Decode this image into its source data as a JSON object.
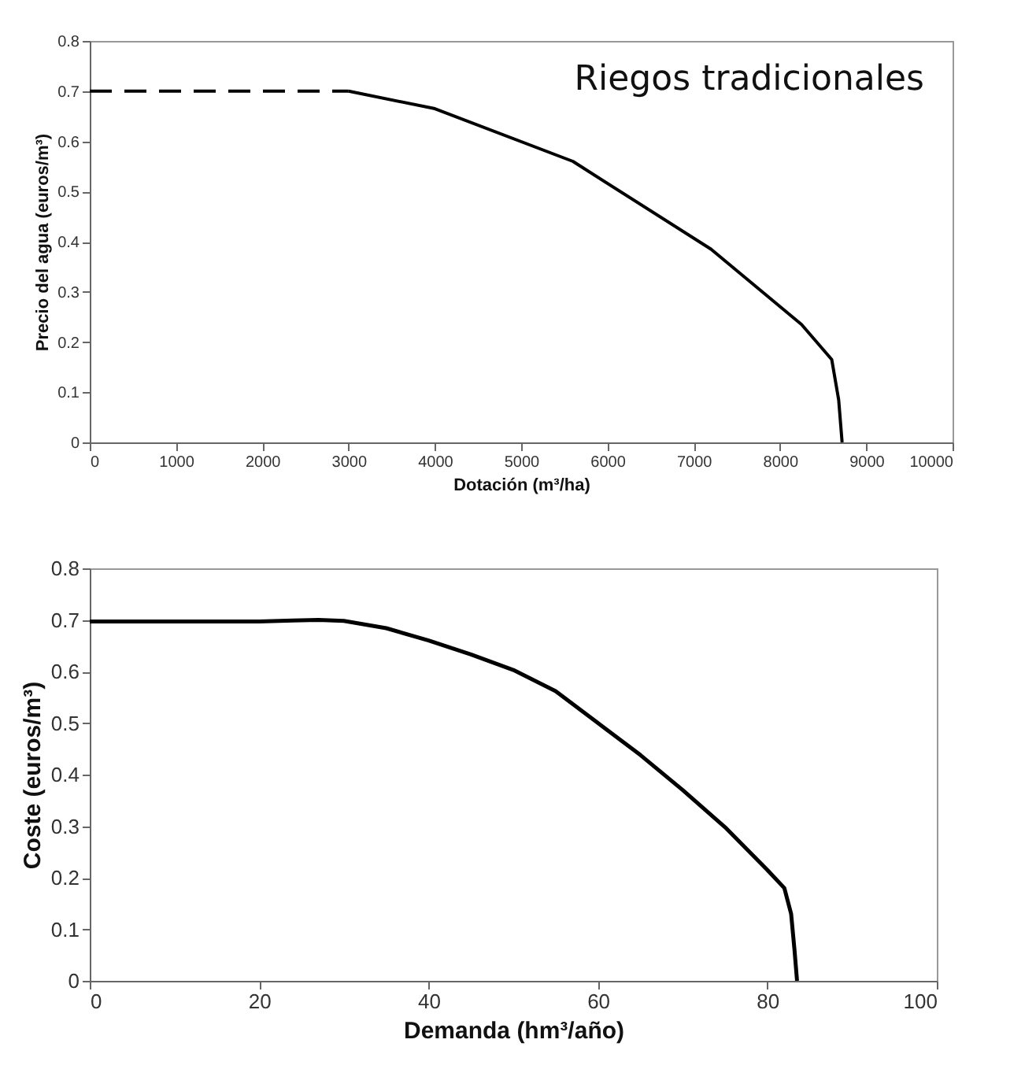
{
  "chart_data": [
    {
      "type": "line",
      "xlabel": "Dotación (m³/ha)",
      "ylabel": "Precio del agua (euros/m³)",
      "annotations": [
        "Riegos tradicionales"
      ],
      "xlim": [
        0,
        10000
      ],
      "xticks": [
        0,
        1000,
        2000,
        3000,
        4000,
        5000,
        6000,
        7000,
        8000,
        9000,
        10000
      ],
      "ylim": [
        0,
        0.8
      ],
      "yticks": [
        0,
        0.1,
        0.2,
        0.3,
        0.4,
        0.5,
        0.6,
        0.7,
        0.8
      ],
      "series": [
        {
          "color": "#000000",
          "line_style": "dashed",
          "x": [
            0,
            3000
          ],
          "values": [
            0.7,
            0.7
          ]
        },
        {
          "color": "#000000",
          "line_style": "solid",
          "x": [
            3000,
            4000,
            5600,
            7200,
            8250,
            8600,
            8680,
            8720
          ],
          "values": [
            0.7,
            0.665,
            0.56,
            0.385,
            0.235,
            0.165,
            0.085,
            0
          ]
        }
      ]
    },
    {
      "type": "line",
      "xlabel": "Demanda (hm³/año)",
      "ylabel": "Coste (euros/m³)",
      "xlim": [
        0,
        100
      ],
      "xticks": [
        0,
        20,
        40,
        60,
        80,
        100
      ],
      "ylim": [
        0,
        0.8
      ],
      "yticks": [
        0,
        0.1,
        0.2,
        0.3,
        0.4,
        0.5,
        0.6,
        0.7,
        0.8
      ],
      "series": [
        {
          "color": "#000000",
          "line_style": "solid",
          "x": [
            0,
            10,
            20,
            24,
            27,
            30,
            35,
            40,
            45,
            50,
            55,
            60,
            65,
            70,
            75,
            80,
            82,
            82.8,
            83.2,
            83.5
          ],
          "values": [
            0.697,
            0.697,
            0.697,
            0.699,
            0.7,
            0.698,
            0.684,
            0.66,
            0.633,
            0.603,
            0.562,
            0.5,
            0.438,
            0.37,
            0.298,
            0.215,
            0.18,
            0.13,
            0.06,
            0
          ]
        }
      ]
    }
  ]
}
